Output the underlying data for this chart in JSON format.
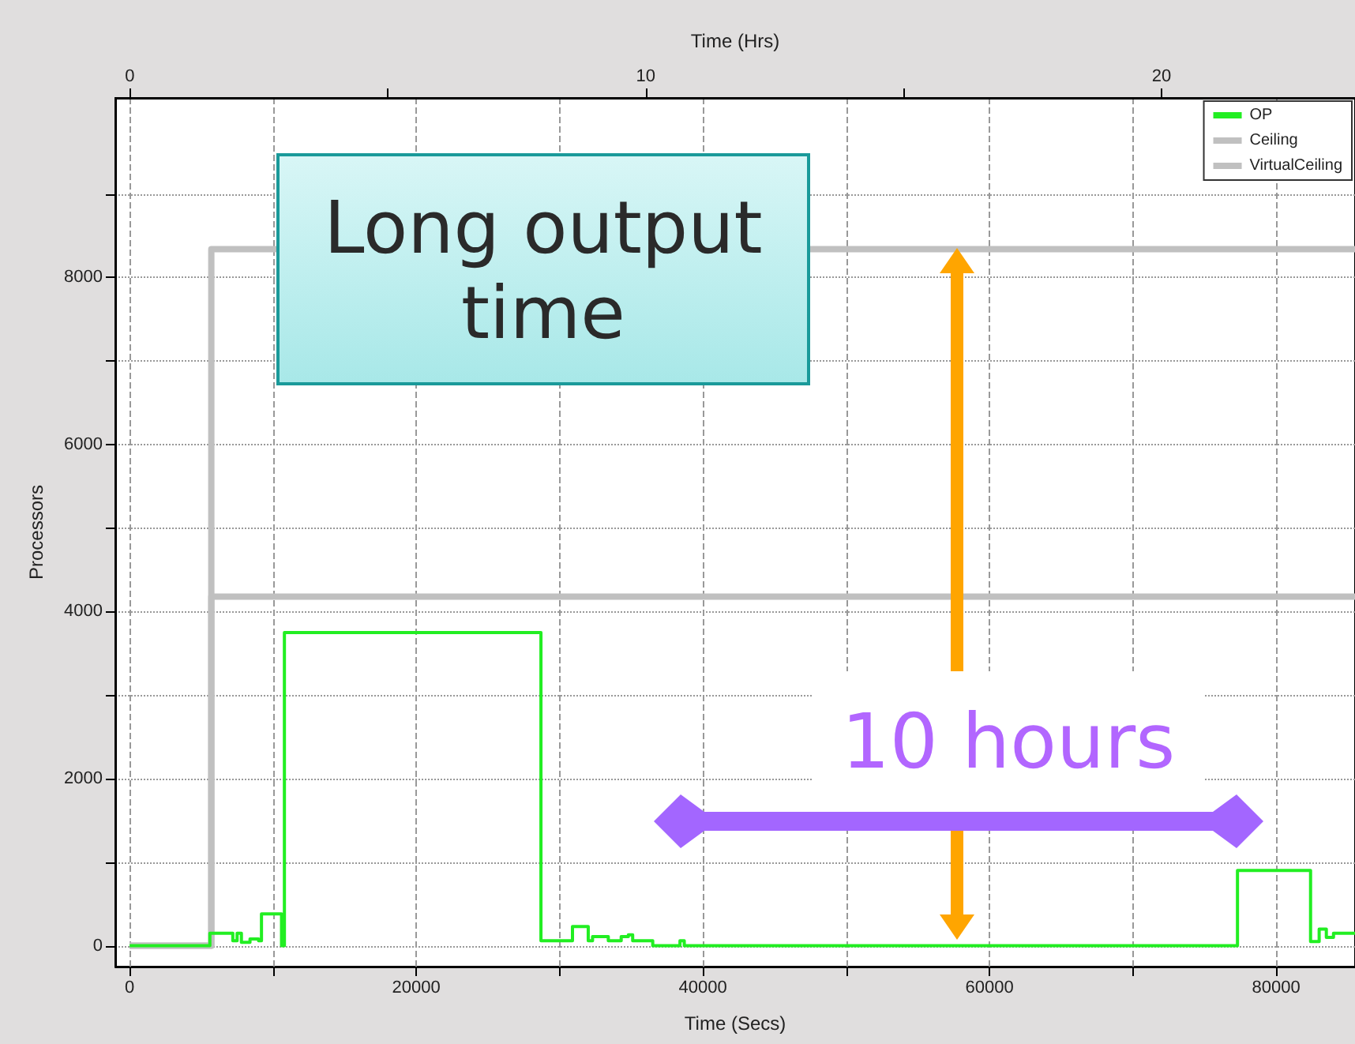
{
  "chart_data": {
    "type": "step",
    "xlabel": "Time (Secs)",
    "x2label": "Time (Hrs)",
    "ylabel": "Processors",
    "xlim": [
      -1000,
      85500
    ],
    "xticks": [
      0,
      {
        "value": 10000,
        "label": null
      },
      20000,
      {
        "value": 30000,
        "label": null
      },
      40000,
      {
        "value": 50000,
        "label": null
      },
      60000,
      {
        "value": 70000,
        "label": null
      },
      80000
    ],
    "x2lim": [
      -0.28,
      23.75
    ],
    "x2ticks": [
      0,
      {
        "value": 5,
        "label": null
      },
      10,
      {
        "value": 15,
        "label": null
      },
      20
    ],
    "ylim": [
      -250,
      10150
    ],
    "yticks": [
      0,
      {
        "value": 1000,
        "label": null
      },
      2000,
      {
        "value": 3000,
        "label": null
      },
      4000,
      {
        "value": 5000,
        "label": null
      },
      6000,
      {
        "value": 7000,
        "label": null
      },
      8000,
      {
        "value": 9000,
        "label": null
      }
    ],
    "grid": true,
    "legend": "top right",
    "marker": "none",
    "line_style": "solid",
    "series": [
      {
        "name": "OP",
        "color": "#22ee22",
        "x": [
          0,
          5600,
          7200,
          7500,
          7800,
          8400,
          9000,
          9200,
          10600,
          10800,
          28700,
          30900,
          32000,
          32300,
          33400,
          34300,
          34800,
          35100,
          36500,
          38400,
          38700,
          77300,
          82400,
          83000,
          83500,
          84000,
          85500
        ],
        "values": [
          0,
          150,
          60,
          150,
          40,
          80,
          60,
          380,
          0,
          3750,
          60,
          230,
          60,
          110,
          60,
          110,
          130,
          60,
          0,
          60,
          0,
          900,
          50,
          200,
          100,
          150,
          150
        ]
      },
      {
        "name": "Ceiling",
        "color": "#c0c0c0",
        "x": [
          0,
          5700,
          85500
        ],
        "values": [
          0,
          4180,
          4180
        ]
      },
      {
        "name": "VirtualCeiling",
        "color": "#c0c0c0",
        "x": [
          0,
          5700,
          85500
        ],
        "values": [
          0,
          8340,
          8340
        ]
      }
    ],
    "annotations": [
      "Long output time",
      "10 hours"
    ]
  }
}
